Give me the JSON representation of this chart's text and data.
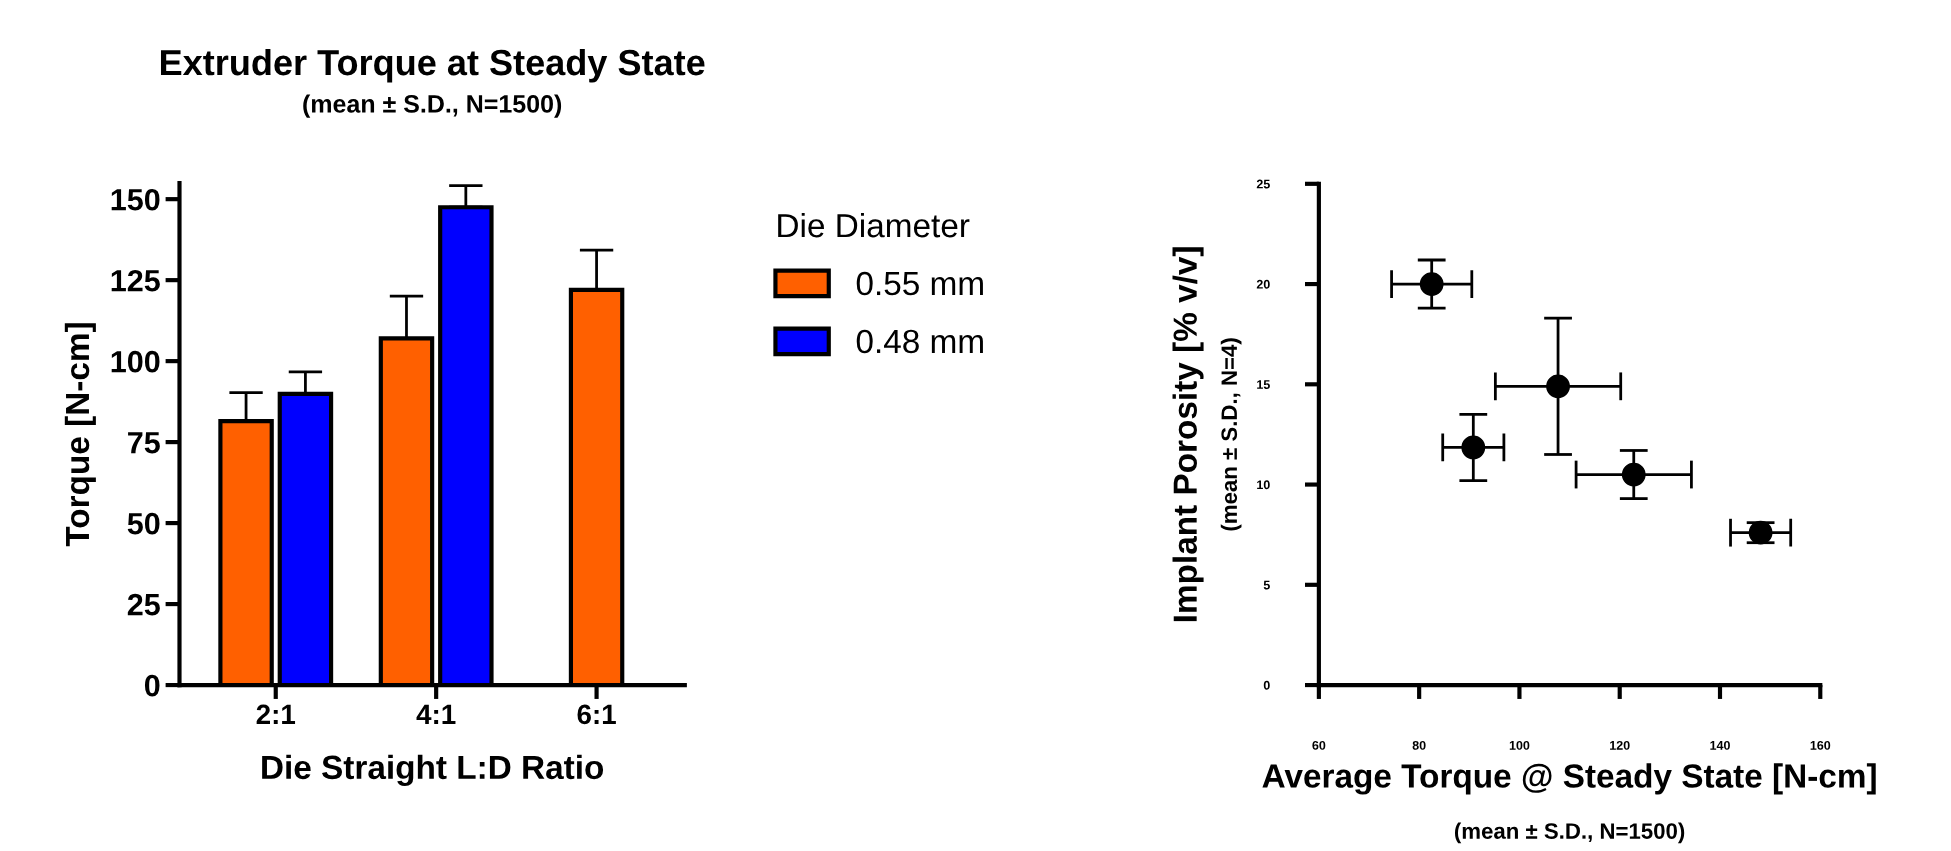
{
  "chart_data": [
    {
      "type": "bar",
      "title": "Extruder Torque at Steady State",
      "subtitle": "(mean ± S.D., N=1500)",
      "xlabel": "Die Straight L:D Ratio",
      "ylabel": "Torque [N-cm]",
      "legend_title": "Die Diameter",
      "legend": "right",
      "categories": [
        "2:1",
        "4:1",
        "6:1"
      ],
      "series": [
        {
          "name": "0.55 mm",
          "color": "#ff6000",
          "values": [
            81.5,
            107,
            122
          ],
          "errors": [
            [
              81.5,
              90.3
            ],
            [
              107,
              120.1
            ],
            [
              122,
              134.3
            ]
          ]
        },
        {
          "name": "0.48 mm",
          "color": "#0000ff",
          "values": [
            89.9,
            147.5,
            null
          ],
          "errors": [
            [
              89.9,
              96.7
            ],
            [
              147.5,
              154.2
            ],
            null
          ]
        }
      ],
      "ylim": [
        0,
        155
      ],
      "yticks": [
        0,
        25,
        50,
        75,
        100,
        125,
        150
      ],
      "grid": false
    },
    {
      "type": "scatter",
      "xlabel": "Average Torque @ Steady State [N-cm]",
      "ylabel": "Implant Porosity [% v/v]",
      "annotations": [
        "(mean ± S.D., N=1500)",
        "(mean ± S.D., N=4)"
      ],
      "marker": "circle",
      "series": [
        {
          "color": "#000000",
          "x": [
            82.5,
            90.8,
            107.7,
            122.8,
            148.1
          ],
          "values": [
            20.0,
            11.85,
            14.9,
            10.5,
            7.6
          ],
          "errors": [
            1.2,
            1.65,
            3.4,
            1.2,
            0.5
          ],
          "xerrors": [
            8,
            6.1,
            12.5,
            11.5,
            6
          ]
        }
      ],
      "xlim": [
        60,
        160
      ],
      "xticks": [
        60,
        80,
        100,
        120,
        140,
        160
      ],
      "ylim": [
        0,
        25
      ],
      "yticks": [
        0,
        5,
        10,
        15,
        20,
        25
      ],
      "grid": false
    }
  ]
}
